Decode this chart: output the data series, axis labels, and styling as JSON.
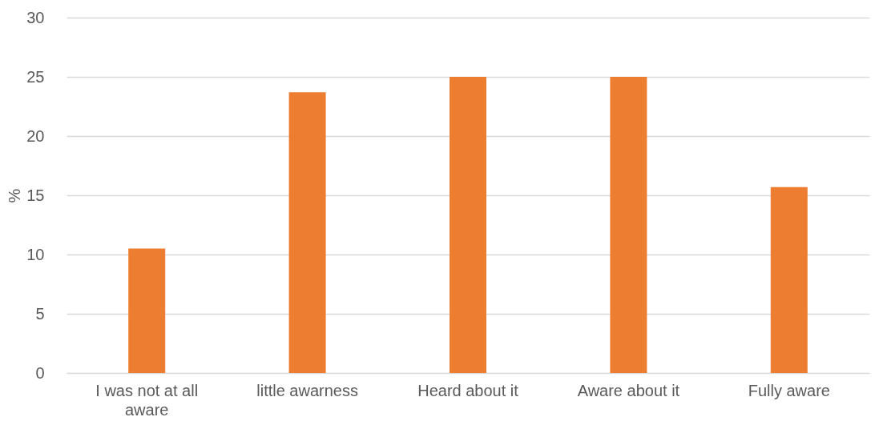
{
  "chart_data": {
    "type": "bar",
    "ylabel": "%",
    "categories": [
      "I was not at all aware",
      "little awarness",
      "Heard about it",
      "Aware about it",
      "Fully aware"
    ],
    "values": [
      10.5,
      23.7,
      25.0,
      25.0,
      15.7
    ],
    "color": "#ed7d31",
    "ylim": [
      0,
      30
    ],
    "yticks": [
      0,
      5,
      10,
      15,
      20,
      25,
      30
    ],
    "grid": "y"
  }
}
